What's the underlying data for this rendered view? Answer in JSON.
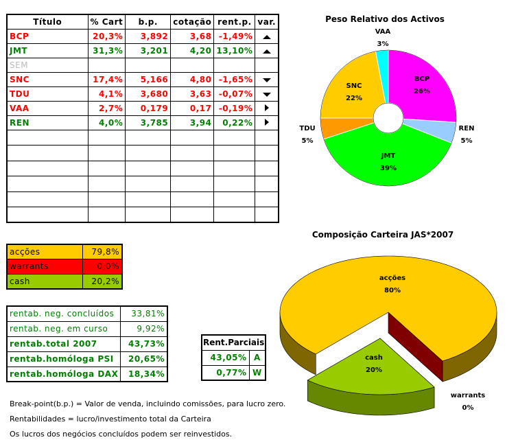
{
  "portfolio": {
    "headers": [
      "Título",
      "% Cart",
      "b.p.",
      "cotação",
      "rent.p.",
      "var."
    ],
    "rows": [
      {
        "t": "BCP",
        "pct": "20,3%",
        "bp": "3,892",
        "cot": "3,68",
        "rent": "-1,49%",
        "var": "up",
        "color": "red"
      },
      {
        "t": "JMT",
        "pct": "31,3%",
        "bp": "3,201",
        "cot": "4,20",
        "rent": "13,10%",
        "var": "up",
        "color": "green"
      },
      {
        "t": "SEM",
        "pct": "",
        "bp": "",
        "cot": "",
        "rent": "",
        "var": "",
        "color": "gray"
      },
      {
        "t": "SNC",
        "pct": "17,4%",
        "bp": "5,166",
        "cot": "4,80",
        "rent": "-1,65%",
        "var": "down",
        "color": "red"
      },
      {
        "t": "TDU",
        "pct": "4,1%",
        "bp": "3,680",
        "cot": "3,63",
        "rent": "-0,07%",
        "var": "down",
        "color": "red"
      },
      {
        "t": "VAA",
        "pct": "2,7%",
        "bp": "0,179",
        "cot": "0,17",
        "rent": "-0,19%",
        "var": "right",
        "color": "red"
      },
      {
        "t": "REN",
        "pct": "4,0%",
        "bp": "3,785",
        "cot": "3,94",
        "rent": "0,22%",
        "var": "right",
        "color": "green"
      }
    ],
    "empty_rows": 6
  },
  "allocation": [
    {
      "label": "acções",
      "value": "79,8%",
      "bg": "#ffcc00"
    },
    {
      "label": "warrants",
      "value": "0,0%",
      "bg": "#ff0000"
    },
    {
      "label": "cash",
      "value": "20,2%",
      "bg": "#99cc00"
    }
  ],
  "returns": [
    {
      "label": "rentab. neg. concluídos",
      "value": "33,81%",
      "bold": false
    },
    {
      "label": "rentab. neg. em curso",
      "value": "9,92%",
      "bold": false
    },
    {
      "label": "rentab.total 2007",
      "value": "43,73%",
      "bold": true
    },
    {
      "label": "rentab.homóloga PSI",
      "value": "20,65%",
      "bold": true
    },
    {
      "label": "rentab.homóloga DAX",
      "value": "18,34%",
      "bold": true
    }
  ],
  "partial": {
    "title": "Rent.Parciais",
    "rows": [
      {
        "value": "43,05%",
        "code": "A"
      },
      {
        "value": "0,77%",
        "code": "W"
      }
    ]
  },
  "notes": [
    "Break-point(b.p.) = Valor de venda, incluindo comissões, para lucro zero.",
    "Rentabilidades = lucro/investimento total da Carteira",
    "Os lucros dos negócios concluídos podem ser reinvestidos."
  ],
  "chart_data": [
    {
      "type": "pie",
      "title": "Peso Relativo dos Activos",
      "donut": true,
      "slices": [
        {
          "label": "BCP",
          "value": 26,
          "text": "26%",
          "color": "#ff00ff"
        },
        {
          "label": "REN",
          "value": 5,
          "text": "5%",
          "color": "#99ccff"
        },
        {
          "label": "JMT",
          "value": 39,
          "text": "39%",
          "color": "#00ff00"
        },
        {
          "label": "TDU",
          "value": 5,
          "text": "5%",
          "color": "#ff9900"
        },
        {
          "label": "SNC",
          "value": 22,
          "text": "22%",
          "color": "#ffcc00"
        },
        {
          "label": "VAA",
          "value": 3,
          "text": "3%",
          "color": "#00ffff"
        }
      ]
    },
    {
      "type": "pie",
      "title": "Composição Carteira JAS*2007",
      "3d": true,
      "slices": [
        {
          "label": "acções",
          "value": 80,
          "text": "80%",
          "color": "#ffcc00"
        },
        {
          "label": "warrants",
          "value": 0,
          "text": "0%",
          "color": "#800000"
        },
        {
          "label": "cash",
          "value": 20,
          "text": "20%",
          "color": "#99cc00",
          "exploded": true
        }
      ]
    }
  ]
}
